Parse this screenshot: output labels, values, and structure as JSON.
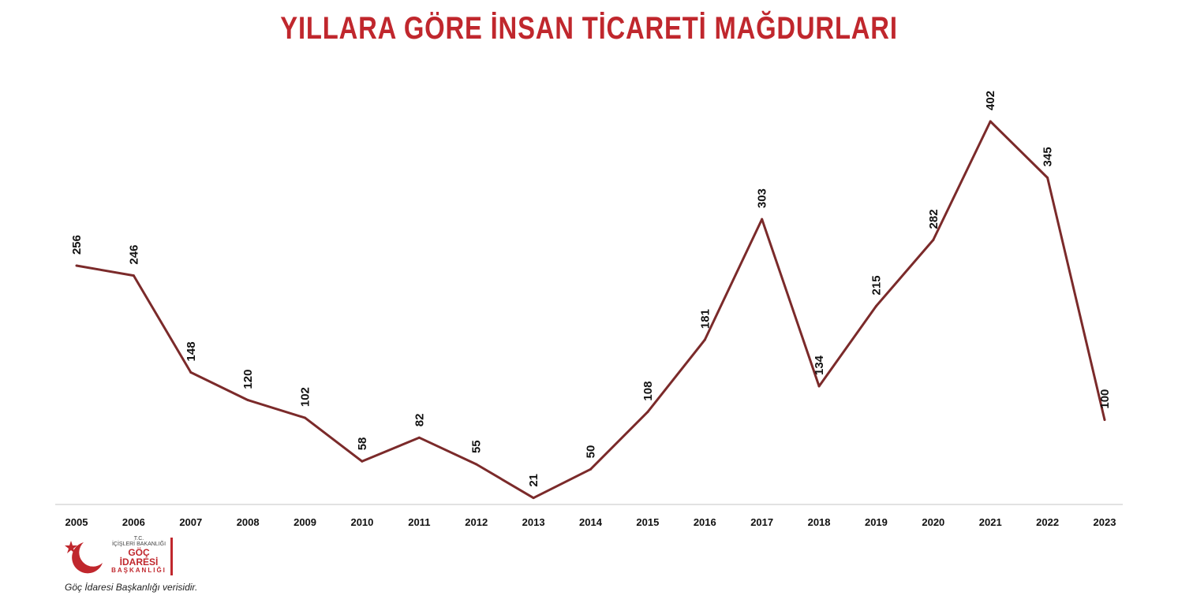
{
  "title": "YILLARA GÖRE İNSAN TİCARETİ MAĞDURLARI",
  "logo": {
    "line1": "T.C.",
    "line2": "İÇİŞLERİ BAKANLIĞI",
    "line3": "GÖÇ İDARESİ",
    "line4": "BAŞKANLIĞI"
  },
  "source_note": "Göç İdaresi Başkanlığı verisidir.",
  "colors": {
    "line": "#7b2a2a",
    "title": "#c0272d",
    "axis": "#d9d9d9"
  },
  "chart_data": {
    "type": "line",
    "title": "YILLARA GÖRE İNSAN TİCARETİ MAĞDURLARI",
    "xlabel": "",
    "ylabel": "",
    "ylim": [
      0,
      420
    ],
    "grid": false,
    "legend": "none",
    "x": [
      "2005",
      "2006",
      "2007",
      "2008",
      "2009",
      "2010",
      "2011",
      "2012",
      "2013",
      "2014",
      "2015",
      "2016",
      "2017",
      "2018",
      "2019",
      "2020",
      "2021",
      "2022",
      "2023"
    ],
    "series": [
      {
        "values": [
          256,
          246,
          148,
          120,
          102,
          58,
          82,
          55,
          21,
          50,
          108,
          181,
          303,
          134,
          215,
          282,
          402,
          345,
          100
        ]
      }
    ]
  }
}
